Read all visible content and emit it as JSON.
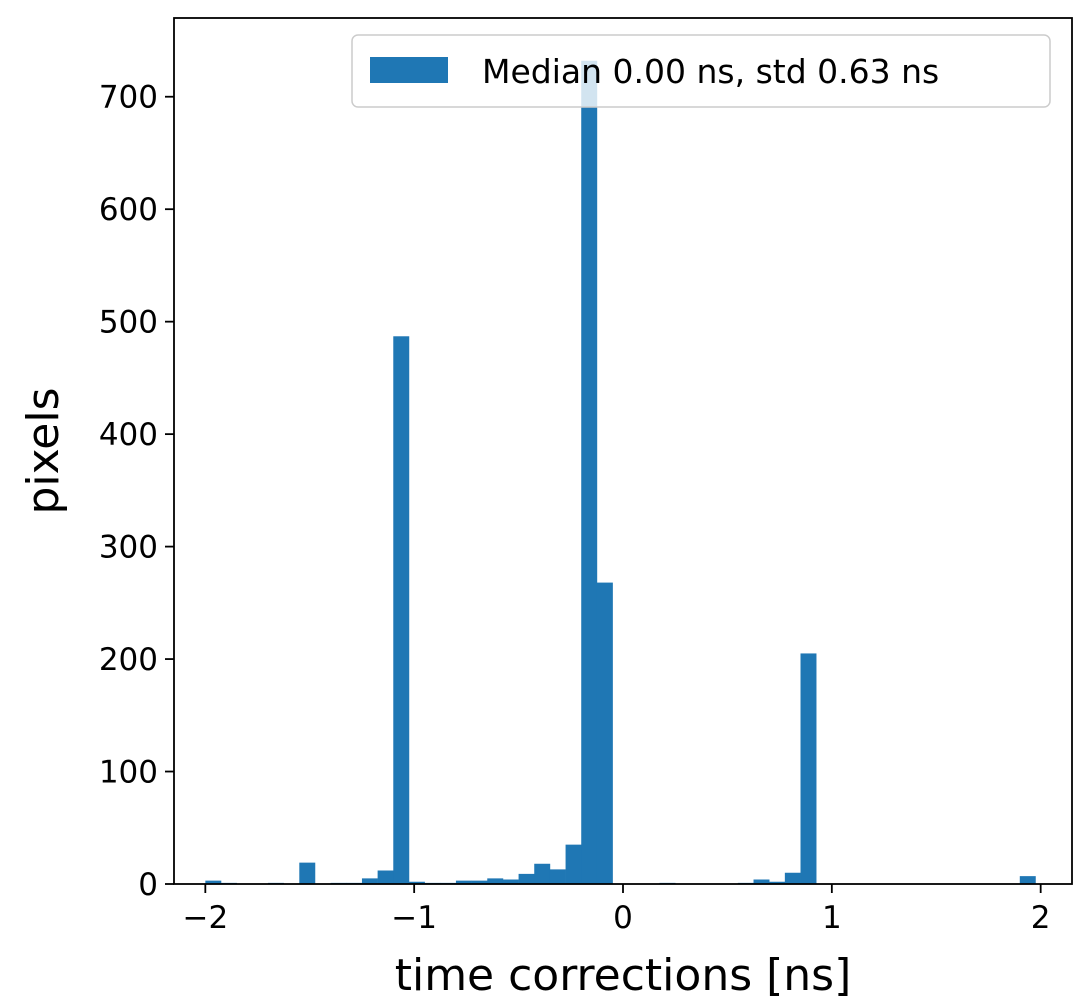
{
  "chart_data": {
    "type": "bar",
    "title": "",
    "xlabel": "time corrections [ns]",
    "ylabel": "pixels",
    "xlim": [
      -2.15,
      2.15
    ],
    "ylim": [
      0,
      770
    ],
    "xticks": [
      -2,
      -1,
      0,
      1,
      2
    ],
    "xtick_labels": [
      "−2",
      "−1",
      "0",
      "1",
      "2"
    ],
    "yticks": [
      0,
      100,
      200,
      300,
      400,
      500,
      600,
      700
    ],
    "ytick_labels": [
      "0",
      "100",
      "200",
      "300",
      "400",
      "500",
      "600",
      "700"
    ],
    "grid": false,
    "legend_position": "top-right",
    "bar_color": "#1f77b4",
    "series": [
      {
        "name": "Median 0.00 ns, std 0.63 ns",
        "bin_edges": [
          -2.0,
          -1.925,
          -1.85,
          -1.775,
          -1.7,
          -1.625,
          -1.55,
          -1.475,
          -1.4,
          -1.325,
          -1.25,
          -1.175,
          -1.1,
          -1.025,
          -0.95,
          -0.875,
          -0.8,
          -0.725,
          -0.65,
          -0.575,
          -0.5,
          -0.425,
          -0.35,
          -0.275,
          -0.2,
          -0.125,
          -0.05,
          0.025,
          0.1,
          0.175,
          0.25,
          0.325,
          0.4,
          0.475,
          0.55,
          0.625,
          0.7,
          0.775,
          0.85,
          0.925,
          1.0,
          1.075,
          1.15,
          1.225,
          1.3,
          1.375,
          1.45,
          1.525,
          1.6,
          1.675,
          1.75,
          1.825,
          1.9,
          1.975
        ],
        "counts": [
          3,
          1,
          0,
          0,
          1,
          0,
          19,
          0,
          1,
          1,
          5,
          12,
          487,
          2,
          1,
          1,
          3,
          3,
          5,
          4,
          9,
          18,
          13,
          35,
          732,
          268,
          0,
          0,
          0,
          1,
          0,
          0,
          0,
          0,
          1,
          4,
          2,
          10,
          205,
          0,
          0,
          0,
          0,
          0,
          0,
          0,
          0,
          0,
          0,
          0,
          0,
          0,
          7
        ]
      }
    ]
  }
}
